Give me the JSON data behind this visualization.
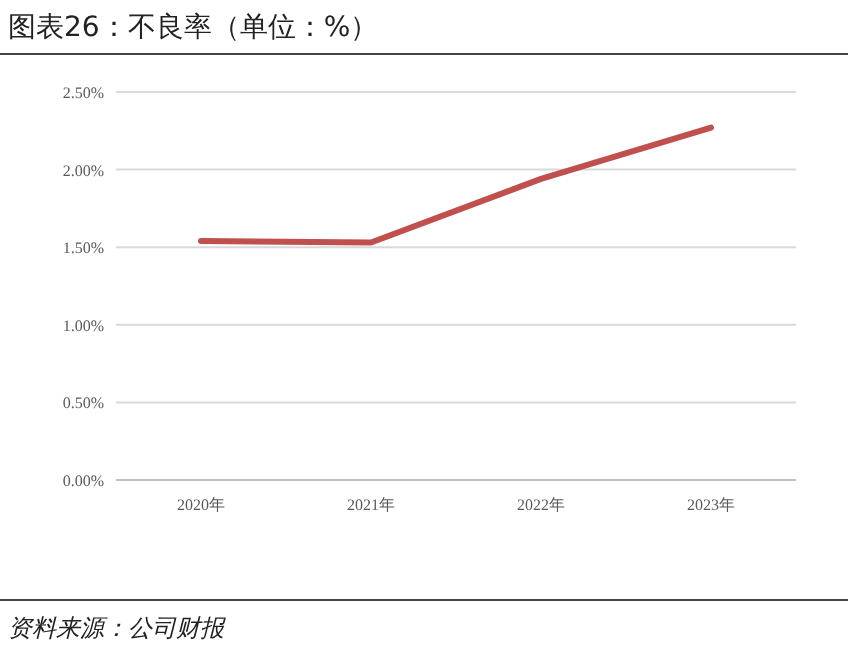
{
  "chart_data": {
    "type": "line",
    "title": "图表26：不良率（单位：%）",
    "categories": [
      "2020年",
      "2021年",
      "2022年",
      "2023年"
    ],
    "series": [
      {
        "color": "#c0504d",
        "values": [
          1.54,
          1.53,
          1.94,
          2.27
        ]
      }
    ],
    "ylim": [
      0,
      2.5
    ],
    "yticks": [
      {
        "value": 0,
        "label": "0.00%"
      },
      {
        "value": 0.5,
        "label": "0.50%"
      },
      {
        "value": 1,
        "label": "1.00%"
      },
      {
        "value": 1.5,
        "label": "1.50%"
      },
      {
        "value": 2,
        "label": "2.00%"
      },
      {
        "value": 2.5,
        "label": "2.50%"
      }
    ],
    "grid": "y",
    "annotations": [
      "资料来源：公司财报"
    ]
  }
}
